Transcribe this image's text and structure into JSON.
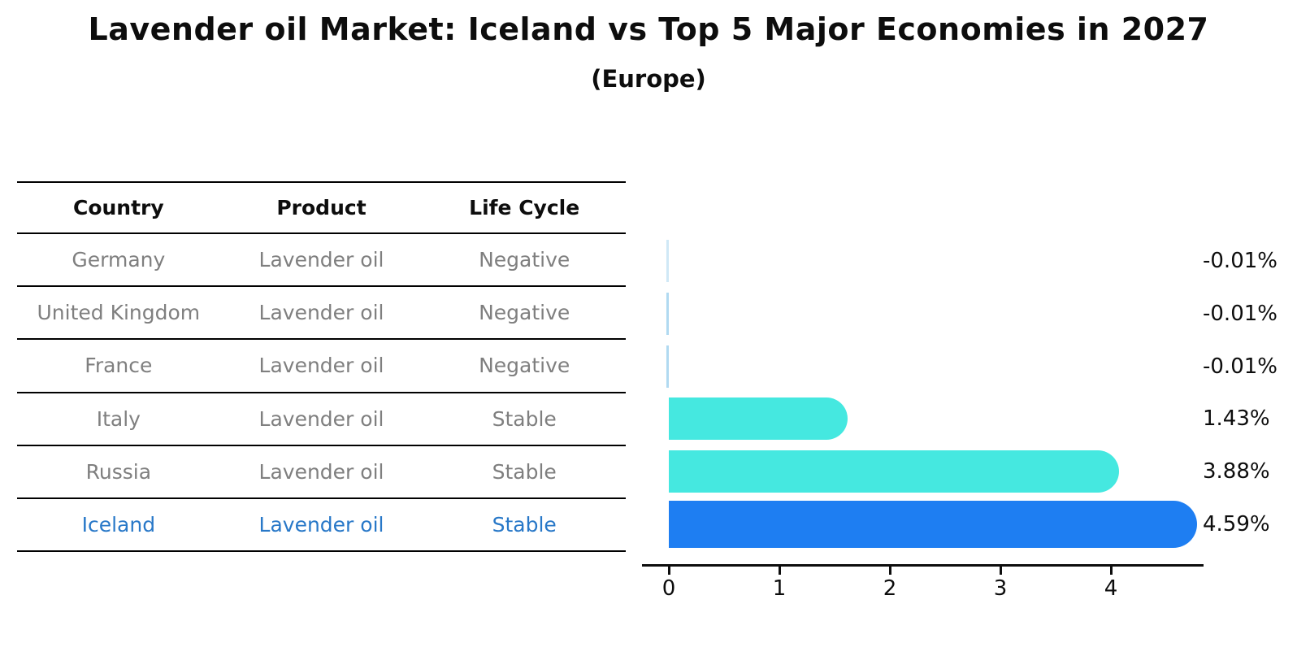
{
  "title": "Lavender oil Market: Iceland vs Top 5 Major Economies in 2027",
  "subtitle": "(Europe)",
  "table": {
    "headers": [
      "Country",
      "Product",
      "Life Cycle"
    ],
    "rows": [
      {
        "country": "Germany",
        "product": "Lavender oil",
        "life_cycle": "Negative",
        "highlight": false
      },
      {
        "country": "United Kingdom",
        "product": "Lavender oil",
        "life_cycle": "Negative",
        "highlight": false
      },
      {
        "country": "France",
        "product": "Lavender oil",
        "life_cycle": "Negative",
        "highlight": false
      },
      {
        "country": "Italy",
        "product": "Lavender oil",
        "life_cycle": "Stable",
        "highlight": false
      },
      {
        "country": "Russia",
        "product": "Lavender oil",
        "life_cycle": "Stable",
        "highlight": false
      },
      {
        "country": "Iceland",
        "product": "Lavender oil",
        "life_cycle": "Stable",
        "highlight": true
      }
    ]
  },
  "chart_data": {
    "type": "bar",
    "orientation": "horizontal",
    "title": "Lavender oil Market: Iceland vs Top 5 Major Economies in 2027 (Europe)",
    "categories": [
      "Germany",
      "United Kingdom",
      "France",
      "Italy",
      "Russia",
      "Iceland"
    ],
    "values": [
      -0.01,
      -0.01,
      -0.01,
      1.43,
      3.88,
      4.59
    ],
    "value_labels": [
      "-0.01%",
      "-0.01%",
      "-0.01%",
      "1.43%",
      "3.88%",
      "4.59%"
    ],
    "x_ticks": [
      "0",
      "1",
      "2",
      "3",
      "4"
    ],
    "xlim": [
      -0.25,
      4.85
    ],
    "xlabel": "",
    "ylabel": "",
    "grid": false,
    "legend": "none",
    "bar_colors": [
      "#a9d6ef",
      "#a9d6ef",
      "#a9d6ef",
      "#45e8e0",
      "#45e8e0",
      "#1e7ef2"
    ],
    "bar_styles": [
      "sliver",
      "sliver",
      "sliver",
      "solid",
      "solid",
      "dotted-outline"
    ],
    "highlight_index": 5
  },
  "colors": {
    "heading_text": "#0d0d0d",
    "row_text": "#7f7f7f",
    "highlight_text": "#2878c8",
    "axis": "#0d0d0d",
    "turquoise": "#45e8e0",
    "highlight_blue": "#1e7ef2",
    "negative_bar": "#a9d6ef"
  }
}
